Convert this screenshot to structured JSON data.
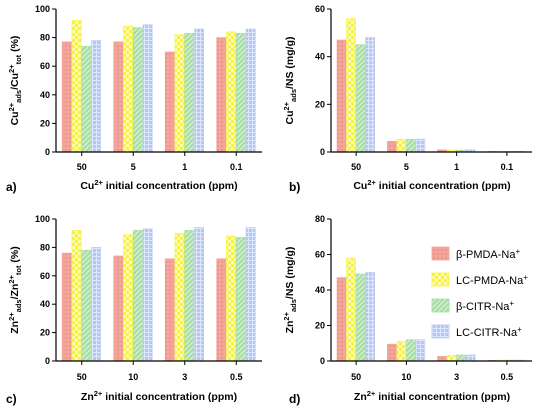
{
  "series_colors": [
    "#f3a59b",
    "#f4f43c",
    "#a7dca4",
    "#b6c8f2"
  ],
  "legend": [
    {
      "label": "β-PMDA-Na",
      "sup": "+"
    },
    {
      "label": "LC-PMDA-Na",
      "sup": "+"
    },
    {
      "label": "β-CITR-Na",
      "sup": "+"
    },
    {
      "label": "LC-CITR-Na",
      "sup": "+"
    }
  ],
  "chart_data": [
    {
      "panel": "a)",
      "type": "bar",
      "ylabel": {
        "parts": [
          [
            "Cu",
            ""
          ],
          [
            "2+",
            "sup"
          ],
          [
            "ads",
            "sub"
          ],
          [
            "/Cu",
            ""
          ],
          [
            "2+",
            "sup"
          ],
          [
            "tot",
            "sub"
          ],
          [
            " (%)",
            ""
          ]
        ]
      },
      "xlabel": {
        "parts": [
          [
            "Cu",
            ""
          ],
          [
            "2+",
            "sup"
          ],
          [
            " initial concentration (ppm)",
            ""
          ]
        ]
      },
      "categories": [
        "50",
        "5",
        "1",
        "0.1"
      ],
      "yticks": [
        "0",
        "20",
        "40",
        "60",
        "80",
        "100"
      ],
      "ylim": [
        0,
        100
      ],
      "series": [
        {
          "name": "β-PMDA-Na+",
          "values": [
            77,
            77,
            70,
            80
          ]
        },
        {
          "name": "LC-PMDA-Na+",
          "values": [
            92,
            88,
            82,
            84
          ]
        },
        {
          "name": "β-CITR-Na+",
          "values": [
            74,
            87,
            83,
            83
          ]
        },
        {
          "name": "LC-CITR-Na+",
          "values": [
            78,
            89,
            86,
            86
          ]
        }
      ]
    },
    {
      "panel": "b)",
      "type": "bar",
      "ylabel": {
        "parts": [
          [
            "Cu",
            ""
          ],
          [
            "2+",
            "sup"
          ],
          [
            "ads",
            "sub"
          ],
          [
            "/NS (mg/g)",
            ""
          ]
        ]
      },
      "xlabel": {
        "parts": [
          [
            "Cu",
            ""
          ],
          [
            "2+",
            "sup"
          ],
          [
            " initial concentration (ppm)",
            ""
          ]
        ]
      },
      "categories": [
        "50",
        "5",
        "1",
        "0.1"
      ],
      "yticks": [
        "0",
        "20",
        "40",
        "60"
      ],
      "ylim": [
        0,
        60
      ],
      "series": [
        {
          "name": "β-PMDA-Na+",
          "values": [
            47,
            4.5,
            0.9,
            0.1
          ]
        },
        {
          "name": "LC-PMDA-Na+",
          "values": [
            56,
            5.3,
            0.8,
            0.1
          ]
        },
        {
          "name": "β-CITR-Na+",
          "values": [
            45,
            5.3,
            0.8,
            0.1
          ]
        },
        {
          "name": "LC-CITR-Na+",
          "values": [
            48,
            5.4,
            0.9,
            0.1
          ]
        }
      ]
    },
    {
      "panel": "c)",
      "type": "bar",
      "ylabel": {
        "parts": [
          [
            "Zn",
            ""
          ],
          [
            "2+",
            "sup"
          ],
          [
            "ads",
            "sub"
          ],
          [
            "/Zn",
            ""
          ],
          [
            "2+",
            "sup"
          ],
          [
            "tot",
            "sub"
          ],
          [
            " (%)",
            ""
          ]
        ]
      },
      "xlabel": {
        "parts": [
          [
            "Zn",
            ""
          ],
          [
            "2+",
            "sup"
          ],
          [
            " initial concentration (ppm)",
            ""
          ]
        ]
      },
      "categories": [
        "50",
        "10",
        "3",
        "0.5"
      ],
      "yticks": [
        "0",
        "20",
        "40",
        "60",
        "80",
        "100"
      ],
      "ylim": [
        0,
        100
      ],
      "series": [
        {
          "name": "β-PMDA-Na+",
          "values": [
            76,
            74,
            72,
            72
          ]
        },
        {
          "name": "LC-PMDA-Na+",
          "values": [
            92,
            89,
            90,
            88
          ]
        },
        {
          "name": "β-CITR-Na+",
          "values": [
            78,
            92,
            92,
            87
          ]
        },
        {
          "name": "LC-CITR-Na+",
          "values": [
            80,
            93,
            94,
            94
          ]
        }
      ]
    },
    {
      "panel": "d)",
      "type": "bar",
      "ylabel": {
        "parts": [
          [
            "Zn",
            ""
          ],
          [
            "2+",
            "sup"
          ],
          [
            "ads",
            "sub"
          ],
          [
            "/NS (mg/g)",
            ""
          ]
        ]
      },
      "xlabel": {
        "parts": [
          [
            "Zn",
            ""
          ],
          [
            "2+",
            "sup"
          ],
          [
            " initial concentration (ppm)",
            ""
          ]
        ]
      },
      "categories": [
        "50",
        "10",
        "3",
        "0.5"
      ],
      "yticks": [
        "0",
        "20",
        "40",
        "60",
        "80"
      ],
      "ylim": [
        0,
        80
      ],
      "series": [
        {
          "name": "β-PMDA-Na+",
          "values": [
            47,
            9.5,
            2.6,
            0.4
          ]
        },
        {
          "name": "LC-PMDA-Na+",
          "values": [
            58,
            11,
            3.2,
            0.5
          ]
        },
        {
          "name": "β-CITR-Na+",
          "values": [
            49,
            12,
            3.4,
            0.5
          ]
        },
        {
          "name": "LC-CITR-Na+",
          "values": [
            50,
            12,
            3.4,
            0.5
          ]
        }
      ]
    }
  ]
}
